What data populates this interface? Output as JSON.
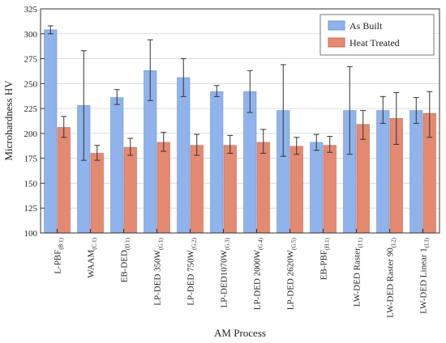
{
  "chart_data": {
    "type": "bar",
    "title": "",
    "xlabel": "AM Process",
    "ylabel": "Microhardness HV",
    "ylim": [
      100,
      325
    ],
    "yticks": [
      100,
      125,
      150,
      175,
      200,
      225,
      250,
      275,
      300,
      325
    ],
    "grid": true,
    "legend_position": "top-right",
    "categories": [
      {
        "label": "L-PBF",
        "sub": "(B.1)"
      },
      {
        "label": "WAAM",
        "sub": "(C.1)"
      },
      {
        "label": "EB-DED",
        "sub": "(D.1)"
      },
      {
        "label": "LP-DED 350W",
        "sub": "(G.1)"
      },
      {
        "label": "LP-DED 750W",
        "sub": "(G.2)"
      },
      {
        "label": "LP-DED1070W",
        "sub": "(G.3)"
      },
      {
        "label": "LP-DED 2000W",
        "sub": "(G.4)"
      },
      {
        "label": "LP-DED 2620W",
        "sub": "(G.5)"
      },
      {
        "label": "EB-PBF",
        "sub": "(H.1)"
      },
      {
        "label": "LW-DED Raster",
        "sub": "(I.1)"
      },
      {
        "label": "LW-DED Raster 90",
        "sub": "(I.2)"
      },
      {
        "label": "LW-DED Linear 1",
        "sub": "(I.3)"
      }
    ],
    "series": [
      {
        "name": "As Built",
        "color": "#8fb3ea",
        "stroke": "#6f97d6",
        "values": [
          304,
          228,
          236,
          263,
          256,
          242,
          242,
          223,
          191,
          223,
          223,
          223
        ],
        "err_low": [
          300,
          173,
          229,
          233,
          237,
          237,
          221,
          177,
          183,
          179,
          210,
          210
        ],
        "err_high": [
          308,
          283,
          244,
          294,
          275,
          248,
          263,
          269,
          199,
          267,
          237,
          236
        ]
      },
      {
        "name": "Heat Treated",
        "color": "#e48a72",
        "stroke": "#c9694f",
        "values": [
          206,
          180,
          186,
          191,
          188,
          188,
          191,
          187,
          188,
          209,
          215,
          220
        ],
        "err_low": [
          196,
          173,
          178,
          182,
          178,
          180,
          180,
          179,
          181,
          194,
          189,
          196
        ],
        "err_high": [
          217,
          188,
          195,
          201,
          199,
          198,
          204,
          196,
          197,
          223,
          241,
          242
        ]
      }
    ]
  }
}
